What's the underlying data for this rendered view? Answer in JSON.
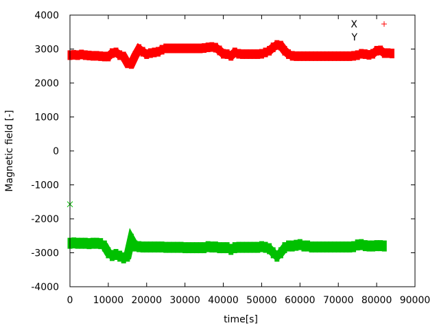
{
  "chart_data": {
    "type": "scatter",
    "title": "",
    "xlabel": "time[s]",
    "ylabel": "Magnetic field [-]",
    "xlim": [
      0,
      90000
    ],
    "ylim": [
      -4000,
      4000
    ],
    "xticks": [
      "0",
      "10000",
      "20000",
      "30000",
      "40000",
      "50000",
      "60000",
      "70000",
      "80000",
      "90000"
    ],
    "yticks": [
      "-4000",
      "-3000",
      "-2000",
      "-1000",
      "0",
      "1000",
      "2000",
      "3000",
      "4000"
    ],
    "grid": false,
    "legend": "top-right",
    "series": [
      {
        "name": "X",
        "color": "#ff0000",
        "marker": "plus",
        "x": [
          0,
          1000,
          2000,
          3000,
          4000,
          5000,
          6000,
          7000,
          8000,
          9000,
          10000,
          11000,
          12000,
          13000,
          14000,
          15000,
          16000,
          17000,
          18000,
          19000,
          20000,
          21000,
          22000,
          23000,
          24000,
          25000,
          26000,
          27000,
          28000,
          29000,
          30000,
          31000,
          32000,
          33000,
          34000,
          35000,
          36000,
          37000,
          38000,
          39000,
          40000,
          41000,
          42000,
          43000,
          44000,
          45000,
          46000,
          47000,
          48000,
          49000,
          50000,
          51000,
          52000,
          53000,
          54000,
          55000,
          56000,
          57000,
          58000,
          59000,
          60000,
          61000,
          62000,
          63000,
          64000,
          65000,
          66000,
          67000,
          68000,
          69000,
          70000,
          71000,
          72000,
          73000,
          74000,
          75000,
          76000,
          77000,
          78000,
          79000,
          80000,
          81000,
          82000,
          83000,
          84000
        ],
        "y": [
          2820,
          2830,
          2820,
          2840,
          2820,
          2810,
          2800,
          2800,
          2790,
          2780,
          2780,
          2880,
          2900,
          2820,
          2780,
          2580,
          2560,
          2800,
          3000,
          2920,
          2850,
          2880,
          2900,
          2920,
          2980,
          3020,
          3020,
          3020,
          3020,
          3020,
          3020,
          3020,
          3020,
          3020,
          3020,
          3030,
          3050,
          3060,
          3040,
          2960,
          2860,
          2850,
          2800,
          2900,
          2860,
          2850,
          2850,
          2850,
          2850,
          2850,
          2860,
          2900,
          2950,
          3050,
          3120,
          3100,
          2950,
          2850,
          2800,
          2790,
          2790,
          2790,
          2790,
          2790,
          2790,
          2790,
          2790,
          2790,
          2790,
          2790,
          2790,
          2790,
          2790,
          2790,
          2800,
          2820,
          2860,
          2850,
          2830,
          2860,
          2950,
          2960,
          2880,
          2880,
          2870
        ]
      },
      {
        "name": "Y",
        "color": "#00c000",
        "marker": "cross",
        "x": [
          0,
          1000,
          2000,
          3000,
          4000,
          5000,
          6000,
          7000,
          8000,
          9000,
          10000,
          11000,
          12000,
          13000,
          14000,
          15000,
          16000,
          17000,
          18000,
          19000,
          20000,
          21000,
          22000,
          23000,
          24000,
          25000,
          26000,
          27000,
          28000,
          29000,
          30000,
          31000,
          32000,
          33000,
          34000,
          35000,
          36000,
          37000,
          38000,
          39000,
          40000,
          41000,
          42000,
          43000,
          44000,
          45000,
          46000,
          47000,
          48000,
          49000,
          50000,
          51000,
          52000,
          53000,
          54000,
          55000,
          56000,
          57000,
          58000,
          59000,
          60000,
          61000,
          62000,
          63000,
          64000,
          65000,
          66000,
          67000,
          68000,
          69000,
          70000,
          71000,
          72000,
          73000,
          74000,
          75000,
          76000,
          77000,
          78000,
          79000,
          80000,
          81000,
          82000
        ],
        "y": [
          -2720,
          -2710,
          -2720,
          -2720,
          -2720,
          -2730,
          -2720,
          -2720,
          -2730,
          -2800,
          -3000,
          -3080,
          -3050,
          -3100,
          -3150,
          -3100,
          -2600,
          -2800,
          -2820,
          -2830,
          -2830,
          -2830,
          -2830,
          -2830,
          -2830,
          -2840,
          -2840,
          -2840,
          -2840,
          -2840,
          -2850,
          -2850,
          -2850,
          -2850,
          -2850,
          -2850,
          -2820,
          -2830,
          -2830,
          -2850,
          -2850,
          -2850,
          -2900,
          -2850,
          -2840,
          -2840,
          -2840,
          -2840,
          -2840,
          -2840,
          -2820,
          -2840,
          -2880,
          -3000,
          -3100,
          -3000,
          -2850,
          -2800,
          -2800,
          -2780,
          -2760,
          -2800,
          -2800,
          -2830,
          -2830,
          -2830,
          -2830,
          -2830,
          -2830,
          -2830,
          -2830,
          -2830,
          -2830,
          -2830,
          -2820,
          -2770,
          -2760,
          -2790,
          -2800,
          -2800,
          -2790,
          -2790,
          -2800
        ]
      }
    ],
    "outliers": [
      {
        "series": "Y",
        "x": 0,
        "y": -1570
      }
    ]
  }
}
